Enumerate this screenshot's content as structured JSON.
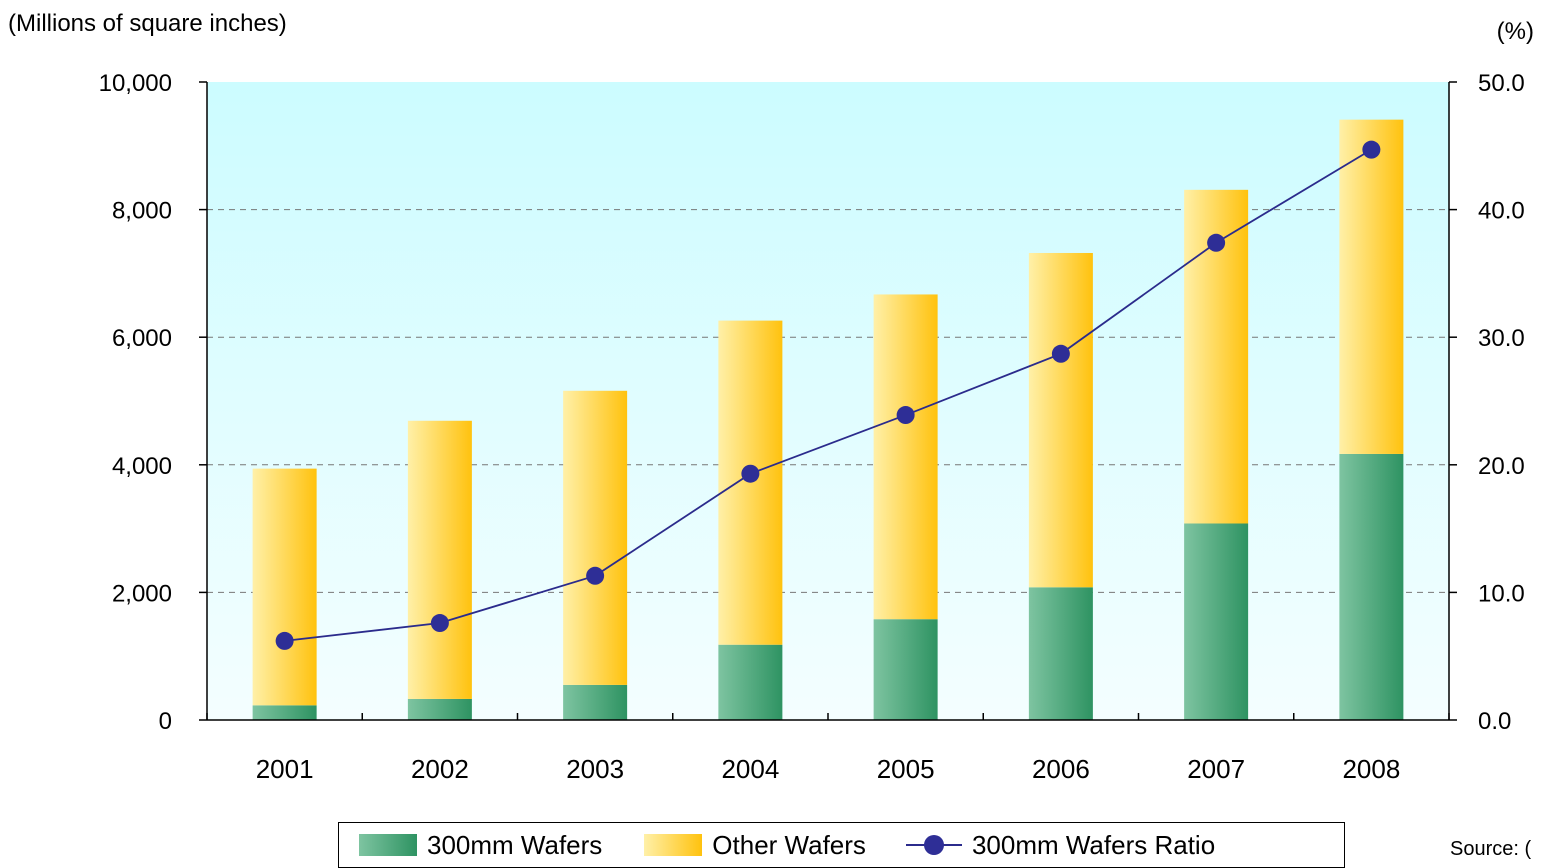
{
  "units": {
    "left": "(Millions of square inches)",
    "right": "(%)"
  },
  "source_text": "Source: (",
  "legend": {
    "bar1": "300mm Wafers",
    "bar2": "Other Wafers",
    "line": "300mm Wafers Ratio"
  },
  "colors": {
    "bg_top": "#ccfcff",
    "bg_bottom": "#f4feff",
    "green_light": "#7ec4a1",
    "green_dark": "#2e9362",
    "yellow_light": "#fff0a8",
    "yellow_dark": "#ffc20e",
    "line": "#2b2b8c",
    "marker": "#2e2e96"
  },
  "chart_data": {
    "type": "bar",
    "stacked": true,
    "categories": [
      "2001",
      "2002",
      "2003",
      "2004",
      "2005",
      "2006",
      "2007",
      "2008"
    ],
    "series": [
      {
        "name": "300mm Wafers",
        "values": [
          230,
          330,
          550,
          1180,
          1580,
          2080,
          3080,
          4170
        ]
      },
      {
        "name": "Other Wafers",
        "values": [
          3710,
          4360,
          4610,
          5080,
          5090,
          5240,
          5230,
          5240
        ]
      }
    ],
    "line_series": {
      "name": "300mm Wafers Ratio",
      "axis": "right",
      "values": [
        6.2,
        7.6,
        11.3,
        19.3,
        23.9,
        28.7,
        37.4,
        44.7
      ]
    },
    "yticks_left": [
      "0",
      "2,000",
      "4,000",
      "6,000",
      "8,000",
      "10,000"
    ],
    "yticks_right": [
      "0.0",
      "10.0",
      "20.0",
      "30.0",
      "40.0",
      "50.0"
    ],
    "ylim": [
      0,
      10000
    ],
    "ylim_right": [
      0,
      50
    ],
    "grid": "horizontal dashed",
    "legend_position": "bottom"
  }
}
